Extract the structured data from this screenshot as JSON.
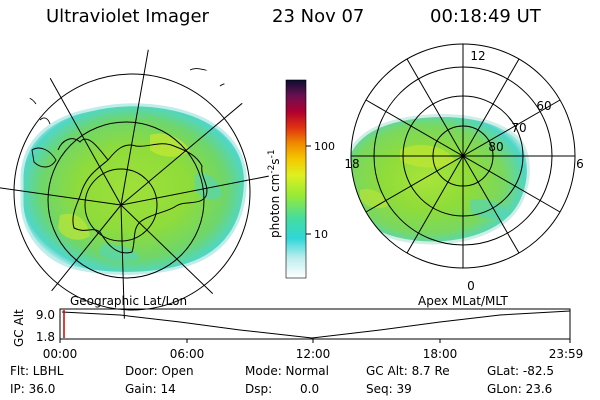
{
  "header": {
    "title": "Ultraviolet Imager",
    "date": "23 Nov 07",
    "time": "00:18:49 UT"
  },
  "panels": {
    "left_caption": "Geographic Lat/Lon",
    "right_caption": "Apex MLat/MLT",
    "mlt_labels": [
      "12",
      "18",
      "6",
      "0"
    ],
    "mlat_labels": [
      "60",
      "70",
      "80"
    ]
  },
  "colorbar": {
    "label_main": "photon cm",
    "label_exp1": "-2",
    "label_s": "s",
    "label_exp2": "-1",
    "ticks": [
      "100",
      "10"
    ],
    "scale": "log",
    "colors": [
      "#e6f7f7",
      "#30d6d9",
      "#48e0a0",
      "#b9f22d",
      "#f5c800",
      "#f07a00",
      "#e02000",
      "#a00040",
      "#60104a",
      "#0a0d30"
    ]
  },
  "timeline": {
    "ylabel": "GC Alt",
    "yticks": [
      "9.0",
      "1.8"
    ],
    "xticks": [
      "00:00",
      "06:00",
      "12:00",
      "18:00",
      "23:59"
    ],
    "marker_color": "#cc0000"
  },
  "info": {
    "row1": [
      "Flt: LBHL",
      "Door: Open",
      "Mode: Normal",
      "GC Alt: 8.7 Re",
      "GLat: -82.5"
    ],
    "row2": [
      "IP: 36.0",
      "Gain: 14",
      "Dsp:",
      "0.0",
      "Seq: 39",
      "GLon: 23.6"
    ]
  },
  "palette": {
    "aurora_green": "#8fdc3a",
    "aurora_yellow": "#c8e830",
    "aurora_cyan": "#4fd6c8",
    "pale": "#d8f2ee"
  }
}
